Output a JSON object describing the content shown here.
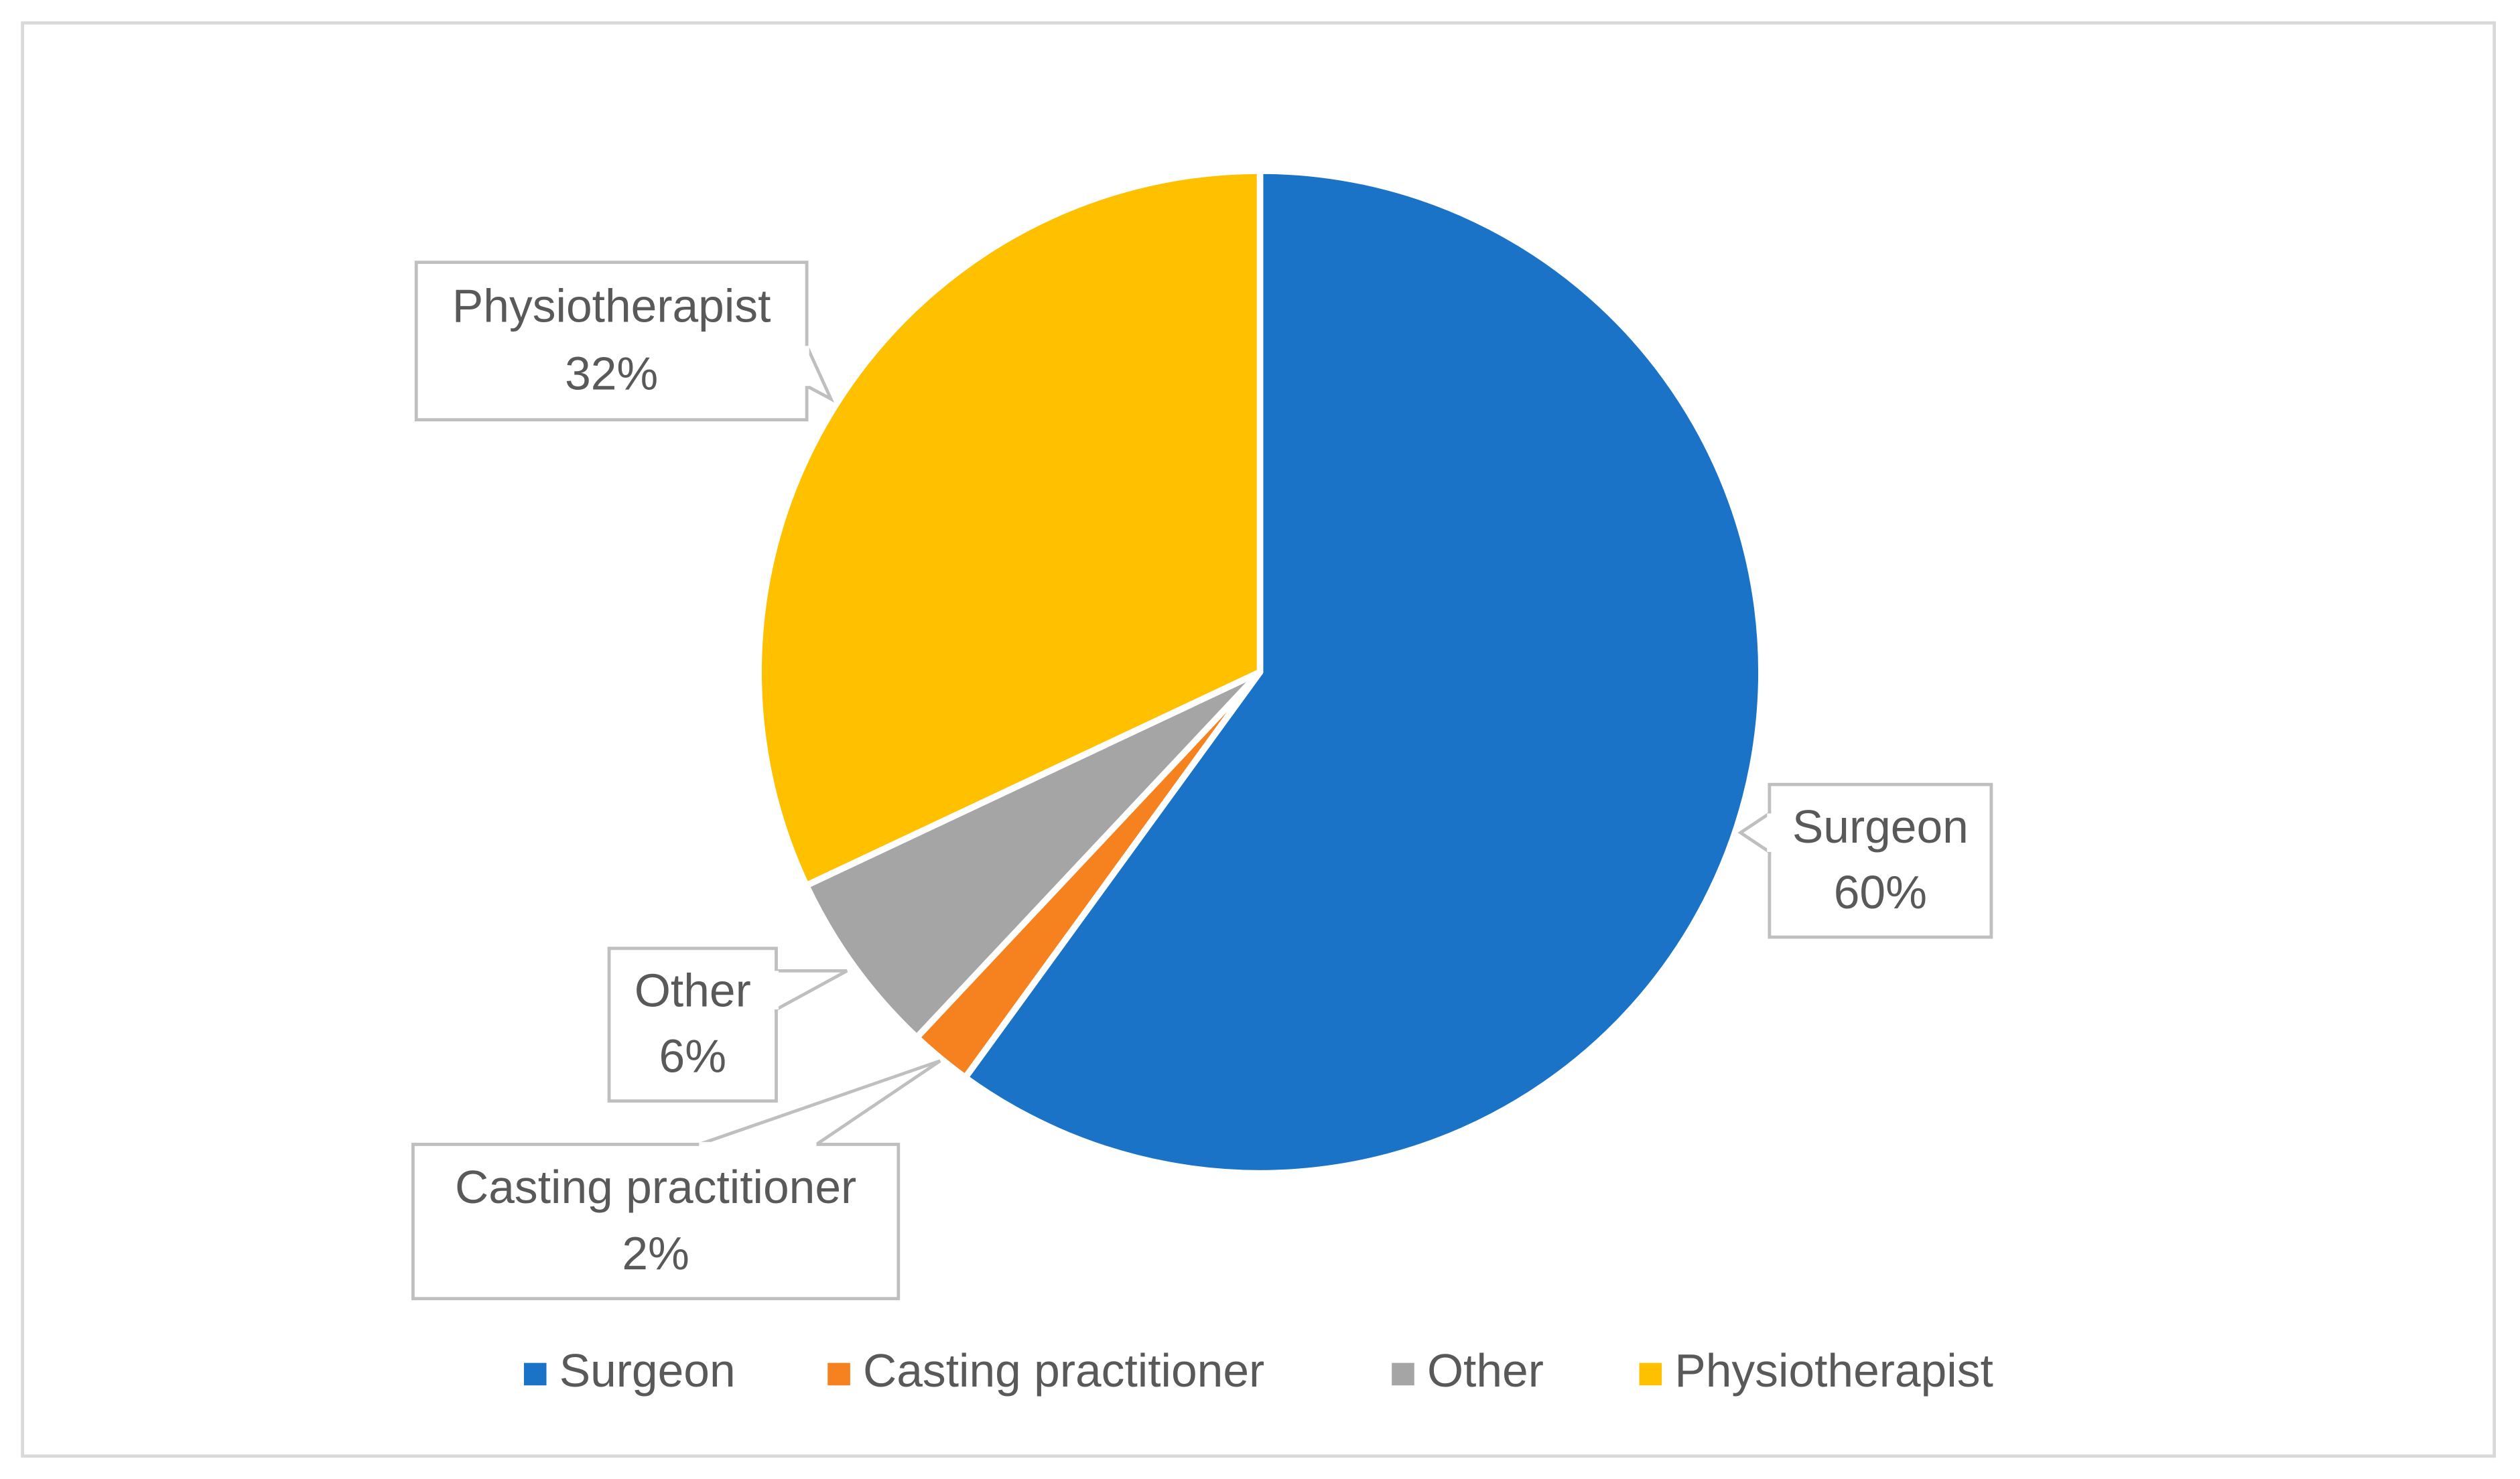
{
  "chart_data": {
    "type": "pie",
    "categories": [
      "Surgeon",
      "Casting practitioner",
      "Other",
      "Physiotherapist"
    ],
    "values": [
      60,
      2,
      6,
      32
    ],
    "value_labels": [
      "60%",
      "2%",
      "6%",
      "32%"
    ],
    "colors": [
      "#1a73c7",
      "#f5821f",
      "#a5a5a5",
      "#ffc000"
    ],
    "legend": "bottom"
  }
}
